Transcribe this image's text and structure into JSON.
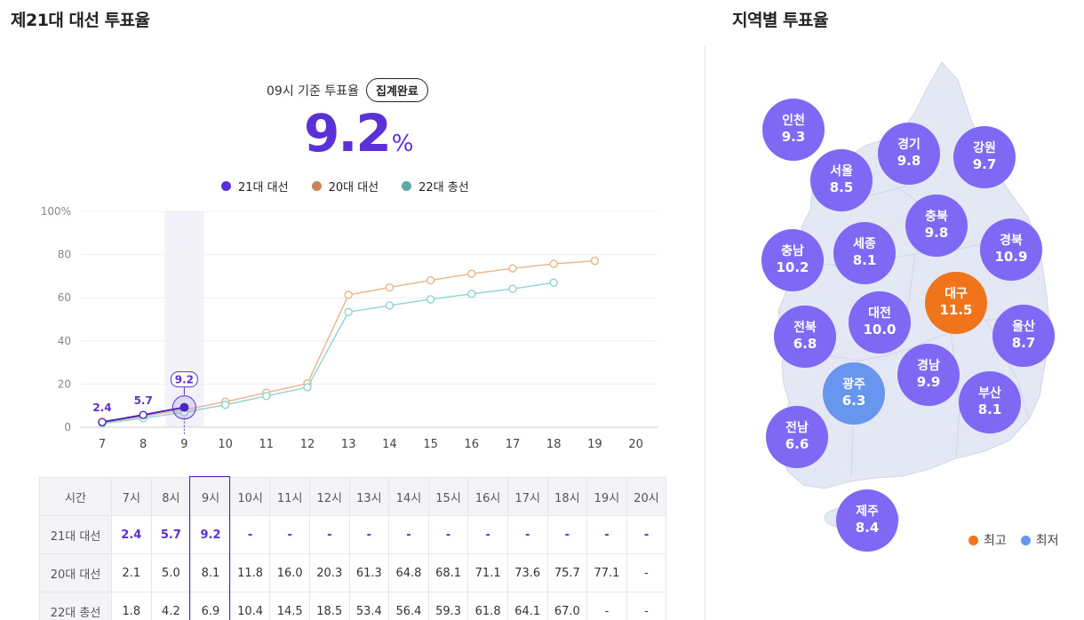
{
  "left_title": "제21대 대선 투표율",
  "right_title": "지역별 투표율",
  "header": {
    "label": "09시 기준 투표율",
    "badge": "집계완료",
    "value": "9.2",
    "unit": "%"
  },
  "colors": {
    "s21": "#5b30d6",
    "s20": "#e8b48a",
    "s22": "#8fd3d3",
    "high": "#f0751a",
    "low": "#6895ee",
    "region": "#7f68f3"
  },
  "chart_data": {
    "type": "line",
    "x": [
      7,
      8,
      9,
      10,
      11,
      12,
      13,
      14,
      15,
      16,
      17,
      18,
      19,
      20
    ],
    "ylim": [
      0,
      100
    ],
    "yticks": [
      "0",
      "20",
      "40",
      "60",
      "80",
      "100%"
    ],
    "highlight_x": 9,
    "series": [
      {
        "name": "21대 대선",
        "values": [
          2.4,
          5.7,
          9.2,
          null,
          null,
          null,
          null,
          null,
          null,
          null,
          null,
          null,
          null,
          null
        ]
      },
      {
        "name": "20대 대선",
        "values": [
          2.1,
          5.0,
          8.1,
          11.8,
          16.0,
          20.3,
          61.3,
          64.8,
          68.1,
          71.1,
          73.6,
          75.7,
          77.1,
          null
        ]
      },
      {
        "name": "22대 총선",
        "values": [
          1.8,
          4.2,
          6.9,
          10.4,
          14.5,
          18.5,
          53.4,
          56.4,
          59.3,
          61.8,
          64.1,
          67.0,
          null,
          null
        ]
      }
    ],
    "data_labels": [
      "2.4",
      "5.7",
      "9.2"
    ]
  },
  "table": {
    "time_header": "시간",
    "times": [
      "7시",
      "8시",
      "9시",
      "10시",
      "11시",
      "12시",
      "13시",
      "14시",
      "15시",
      "16시",
      "17시",
      "18시",
      "19시",
      "20시"
    ],
    "rows": [
      {
        "label": "21대 대선",
        "current": true,
        "values": [
          "2.4",
          "5.7",
          "9.2",
          "-",
          "-",
          "-",
          "-",
          "-",
          "-",
          "-",
          "-",
          "-",
          "-",
          "-"
        ]
      },
      {
        "label": "20대 대선",
        "current": false,
        "values": [
          "2.1",
          "5.0",
          "8.1",
          "11.8",
          "16.0",
          "20.3",
          "61.3",
          "64.8",
          "68.1",
          "71.1",
          "73.6",
          "75.7",
          "77.1",
          "-"
        ]
      },
      {
        "label": "22대 총선",
        "current": false,
        "values": [
          "1.8",
          "4.2",
          "6.9",
          "10.4",
          "14.5",
          "18.5",
          "53.4",
          "56.4",
          "59.3",
          "61.8",
          "64.1",
          "67.0",
          "-",
          "-"
        ]
      }
    ]
  },
  "regions": [
    {
      "name": "인천",
      "value": "9.3",
      "status": "normal"
    },
    {
      "name": "경기",
      "value": "9.8",
      "status": "normal"
    },
    {
      "name": "강원",
      "value": "9.7",
      "status": "normal"
    },
    {
      "name": "서울",
      "value": "8.5",
      "status": "normal"
    },
    {
      "name": "충북",
      "value": "9.8",
      "status": "normal"
    },
    {
      "name": "충남",
      "value": "10.2",
      "status": "normal"
    },
    {
      "name": "세종",
      "value": "8.1",
      "status": "normal"
    },
    {
      "name": "경북",
      "value": "10.9",
      "status": "normal"
    },
    {
      "name": "대구",
      "value": "11.5",
      "status": "high"
    },
    {
      "name": "대전",
      "value": "10.0",
      "status": "normal"
    },
    {
      "name": "전북",
      "value": "6.8",
      "status": "normal"
    },
    {
      "name": "울산",
      "value": "8.7",
      "status": "normal"
    },
    {
      "name": "광주",
      "value": "6.3",
      "status": "low"
    },
    {
      "name": "경남",
      "value": "9.9",
      "status": "normal"
    },
    {
      "name": "부산",
      "value": "8.1",
      "status": "normal"
    },
    {
      "name": "전남",
      "value": "6.6",
      "status": "normal"
    },
    {
      "name": "제주",
      "value": "8.4",
      "status": "normal"
    }
  ],
  "map_legend": {
    "high_label": "최고",
    "low_label": "최저"
  }
}
